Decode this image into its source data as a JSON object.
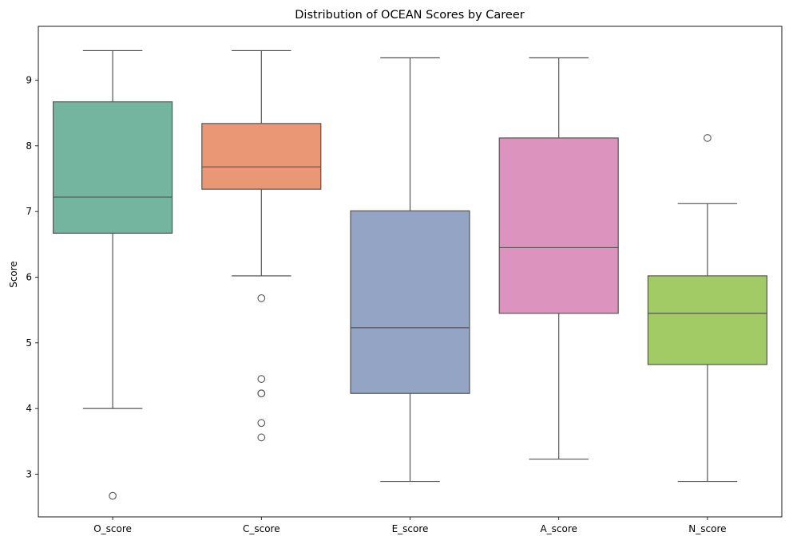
{
  "chart_data": {
    "type": "box",
    "title": "Distribution of OCEAN Scores by Career",
    "xlabel": "",
    "ylabel": "Score",
    "ylim": [
      2.35,
      9.82
    ],
    "yticks": [
      3,
      4,
      5,
      6,
      7,
      8,
      9
    ],
    "grid": false,
    "categories": [
      "O_score",
      "C_score",
      "E_score",
      "A_score",
      "N_score"
    ],
    "boxes": [
      {
        "name": "O_score",
        "color": "#73b59f",
        "whisker_low": 4.0,
        "q1": 6.67,
        "median": 7.22,
        "q3": 8.67,
        "whisker_high": 9.45,
        "outliers": [
          2.67
        ]
      },
      {
        "name": "C_score",
        "color": "#ea9776",
        "whisker_low": 6.02,
        "q1": 7.34,
        "median": 7.68,
        "q3": 8.34,
        "whisker_high": 9.45,
        "outliers": [
          5.68,
          4.45,
          4.23,
          4.23,
          3.78,
          3.56
        ]
      },
      {
        "name": "E_score",
        "color": "#94a4c4",
        "whisker_low": 2.89,
        "q1": 4.23,
        "median": 5.23,
        "q3": 7.01,
        "whisker_high": 9.34,
        "outliers": []
      },
      {
        "name": "A_score",
        "color": "#dc94bf",
        "whisker_low": 3.23,
        "q1": 5.45,
        "median": 6.45,
        "q3": 8.12,
        "whisker_high": 9.34,
        "outliers": []
      },
      {
        "name": "N_score",
        "color": "#a2cb65",
        "whisker_low": 2.89,
        "q1": 4.67,
        "median": 5.45,
        "q3": 6.02,
        "whisker_high": 7.12,
        "outliers": [
          8.12
        ]
      }
    ]
  }
}
